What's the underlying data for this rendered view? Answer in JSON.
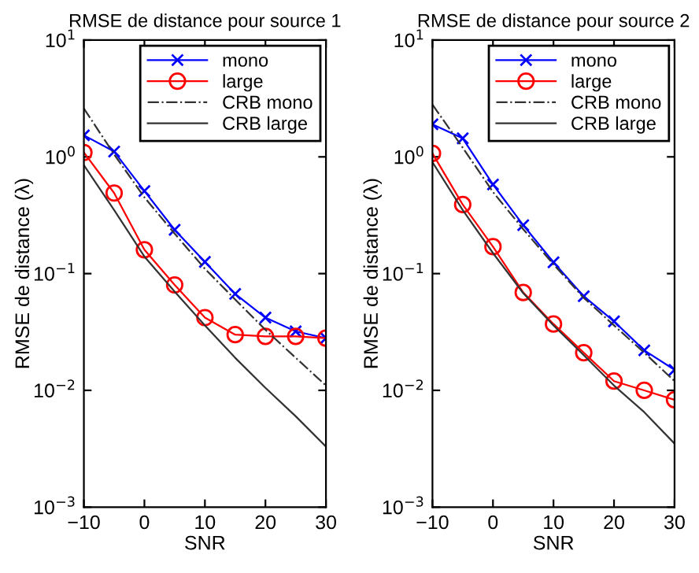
{
  "chart_data": [
    {
      "type": "line",
      "title": "RMSE de distance pour source 1",
      "xlabel": "SNR",
      "ylabel": "RMSE de distance (λ)",
      "log": "y",
      "legend": "top right",
      "grid": false,
      "x": [
        -10,
        -5,
        0,
        5,
        10,
        15,
        20,
        25,
        30
      ],
      "xlim": [
        -10,
        30
      ],
      "xticks": [
        {
          "value": -10,
          "label": "−10"
        },
        0,
        10,
        20,
        30
      ],
      "ylim": [
        0.001,
        10
      ],
      "yticks": [
        {
          "value": 0.001,
          "label": "10$^{−3}$"
        },
        {
          "value": 0.01,
          "label": "10$^{−2}$"
        },
        {
          "value": 0.1,
          "label": "10$^{−1}$"
        },
        {
          "value": 1,
          "label": "10$^{0}$"
        },
        {
          "value": 10,
          "label": "10$^{1}$"
        }
      ],
      "series": [
        {
          "name": "mono",
          "color": "#0000ff",
          "marker": "cross",
          "line_style": "solid",
          "values": [
            1.53,
            1.11,
            0.51,
            0.237,
            0.126,
            0.067,
            0.042,
            0.032,
            0.028
          ]
        },
        {
          "name": "large",
          "color": "#ff0000",
          "marker": "circle",
          "line_style": "solid",
          "values": [
            1.09,
            0.49,
            0.16,
            0.08,
            0.042,
            0.03,
            0.029,
            0.029,
            0.028
          ]
        },
        {
          "name": "CRB mono",
          "color": "#333333",
          "marker": "none",
          "line_style": "dashdot",
          "values": [
            2.6,
            1.05,
            0.45,
            0.22,
            0.11,
            0.06,
            0.033,
            0.019,
            0.011
          ]
        },
        {
          "name": "CRB large",
          "color": "#333333",
          "marker": "none",
          "line_style": "solid",
          "values": [
            0.85,
            0.35,
            0.14,
            0.07,
            0.036,
            0.019,
            0.0105,
            0.006,
            0.0033
          ]
        }
      ]
    },
    {
      "type": "line",
      "title": "RMSE de distance pour source 2",
      "xlabel": "SNR",
      "ylabel": "RMSE de distance (λ)",
      "log": "y",
      "legend": "top right",
      "grid": false,
      "x": [
        -10,
        -5,
        0,
        5,
        10,
        15,
        20,
        25,
        30
      ],
      "xlim": [
        -10,
        30
      ],
      "xticks": [
        {
          "value": -10,
          "label": "−10"
        },
        0,
        10,
        20,
        30
      ],
      "ylim": [
        0.001,
        10
      ],
      "yticks": [
        {
          "value": 0.001,
          "label": "10$^{−3}$"
        },
        {
          "value": 0.01,
          "label": "10$^{−2}$"
        },
        {
          "value": 0.1,
          "label": "10$^{−1}$"
        },
        {
          "value": 1,
          "label": "10$^{0}$"
        },
        {
          "value": 10,
          "label": "10$^{1}$"
        }
      ],
      "series": [
        {
          "name": "mono",
          "color": "#0000ff",
          "marker": "cross",
          "line_style": "solid",
          "values": [
            1.9,
            1.44,
            0.58,
            0.26,
            0.125,
            0.064,
            0.039,
            0.022,
            0.015
          ]
        },
        {
          "name": "large",
          "color": "#ff0000",
          "marker": "circle",
          "line_style": "solid",
          "values": [
            1.07,
            0.39,
            0.17,
            0.069,
            0.037,
            0.021,
            0.012,
            0.01,
            0.0083
          ]
        },
        {
          "name": "CRB mono",
          "color": "#333333",
          "marker": "none",
          "line_style": "dashdot",
          "values": [
            2.8,
            1.2,
            0.5,
            0.24,
            0.12,
            0.062,
            0.036,
            0.021,
            0.012
          ]
        },
        {
          "name": "CRB large",
          "color": "#333333",
          "marker": "none",
          "line_style": "solid",
          "values": [
            0.9,
            0.35,
            0.15,
            0.068,
            0.036,
            0.02,
            0.011,
            0.0065,
            0.0035
          ]
        }
      ]
    }
  ]
}
